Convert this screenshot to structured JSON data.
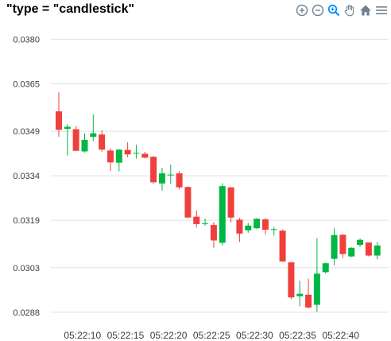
{
  "title": "\"type = \"candlestick\"",
  "toolbar": {
    "items": [
      "zoom-in",
      "zoom-out",
      "zoom-selection",
      "pan",
      "reset-home",
      "menu"
    ]
  },
  "colors": {
    "up": "#00b746",
    "down": "#ef403c",
    "grid": "#e0e0e0",
    "toolbar_icon": "#6e8192",
    "toolbar_active": "#008ffb"
  },
  "chart_data": {
    "type": "candlestick",
    "title": "\"type = \"candlestick\"",
    "ylim": [
      0.0285,
      0.0386
    ],
    "yticks": [
      "0.0380",
      "0.0365",
      "0.0349",
      "0.0334",
      "0.0319",
      "0.0303",
      "0.0288"
    ],
    "ytick_values": [
      0.038,
      0.0365,
      0.0349,
      0.0334,
      0.0319,
      0.0303,
      0.0288
    ],
    "xticks": [
      "05:22:10",
      "05:22:15",
      "05:22:20",
      "05:22:25",
      "05:22:30",
      "05:22:35",
      "05:22:40"
    ],
    "xtick_positions": [
      2.75,
      7.75,
      12.75,
      17.75,
      22.75,
      27.75,
      32.75
    ],
    "x_count": 38,
    "grid": true,
    "candles": [
      {
        "o": 0.03557,
        "h": 0.03621,
        "l": 0.03471,
        "c": 0.03495
      },
      {
        "o": 0.03498,
        "h": 0.03514,
        "l": 0.03408,
        "c": 0.03505
      },
      {
        "o": 0.03497,
        "h": 0.03508,
        "l": 0.03424,
        "c": 0.03424
      },
      {
        "o": 0.03422,
        "h": 0.03483,
        "l": 0.03418,
        "c": 0.03461
      },
      {
        "o": 0.03471,
        "h": 0.03547,
        "l": 0.03457,
        "c": 0.03483
      },
      {
        "o": 0.03479,
        "h": 0.03493,
        "l": 0.03421,
        "c": 0.03428
      },
      {
        "o": 0.03425,
        "h": 0.03432,
        "l": 0.03357,
        "c": 0.03385
      },
      {
        "o": 0.03384,
        "h": 0.0343,
        "l": 0.03355,
        "c": 0.03428
      },
      {
        "o": 0.03427,
        "h": 0.03453,
        "l": 0.03402,
        "c": 0.03412
      },
      {
        "o": 0.03416,
        "h": 0.03445,
        "l": 0.03398,
        "c": 0.03417
      },
      {
        "o": 0.03414,
        "h": 0.03421,
        "l": 0.03398,
        "c": 0.03401
      },
      {
        "o": 0.03404,
        "h": 0.03406,
        "l": 0.03313,
        "c": 0.03318
      },
      {
        "o": 0.03314,
        "h": 0.03367,
        "l": 0.0329,
        "c": 0.03348
      },
      {
        "o": 0.03343,
        "h": 0.03378,
        "l": 0.03312,
        "c": 0.03344
      },
      {
        "o": 0.03348,
        "h": 0.03356,
        "l": 0.03294,
        "c": 0.03301
      },
      {
        "o": 0.03302,
        "h": 0.03304,
        "l": 0.03199,
        "c": 0.03199
      },
      {
        "o": 0.03202,
        "h": 0.03223,
        "l": 0.03165,
        "c": 0.03177
      },
      {
        "o": 0.03179,
        "h": 0.03196,
        "l": 0.03172,
        "c": 0.0318
      },
      {
        "o": 0.03174,
        "h": 0.03184,
        "l": 0.03097,
        "c": 0.03122
      },
      {
        "o": 0.03114,
        "h": 0.03315,
        "l": 0.03105,
        "c": 0.03305
      },
      {
        "o": 0.03301,
        "h": 0.03301,
        "l": 0.03183,
        "c": 0.03199
      },
      {
        "o": 0.03192,
        "h": 0.03198,
        "l": 0.03117,
        "c": 0.03145
      },
      {
        "o": 0.03156,
        "h": 0.03181,
        "l": 0.03148,
        "c": 0.03172
      },
      {
        "o": 0.03163,
        "h": 0.03197,
        "l": 0.0316,
        "c": 0.03195
      },
      {
        "o": 0.03193,
        "h": 0.03197,
        "l": 0.03142,
        "c": 0.03158
      },
      {
        "o": 0.03159,
        "h": 0.03167,
        "l": 0.03138,
        "c": 0.0316
      },
      {
        "o": 0.03155,
        "h": 0.03159,
        "l": 0.0305,
        "c": 0.03051
      },
      {
        "o": 0.03048,
        "h": 0.0305,
        "l": 0.02924,
        "c": 0.0293
      },
      {
        "o": 0.02934,
        "h": 0.02986,
        "l": 0.029,
        "c": 0.02942
      },
      {
        "o": 0.02939,
        "h": 0.02993,
        "l": 0.02893,
        "c": 0.02896
      },
      {
        "o": 0.02905,
        "h": 0.0313,
        "l": 0.0288,
        "c": 0.0301
      },
      {
        "o": 0.03015,
        "h": 0.03047,
        "l": 0.0301,
        "c": 0.03045
      },
      {
        "o": 0.0306,
        "h": 0.03163,
        "l": 0.03038,
        "c": 0.0314
      },
      {
        "o": 0.03141,
        "h": 0.03143,
        "l": 0.03063,
        "c": 0.03076
      },
      {
        "o": 0.03068,
        "h": 0.03099,
        "l": 0.03066,
        "c": 0.03097
      },
      {
        "o": 0.03107,
        "h": 0.03129,
        "l": 0.031,
        "c": 0.03124
      },
      {
        "o": 0.03115,
        "h": 0.03115,
        "l": 0.03068,
        "c": 0.03071
      },
      {
        "o": 0.03071,
        "h": 0.03117,
        "l": 0.03058,
        "c": 0.03105
      }
    ]
  }
}
